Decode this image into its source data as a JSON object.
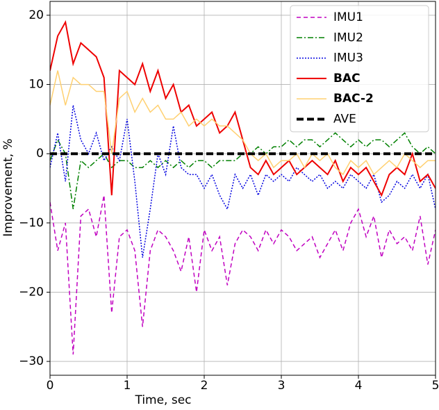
{
  "chart_data": {
    "type": "line",
    "xlabel": "Time, sec",
    "ylabel": "Improvement, %",
    "x": [
      0,
      0.1,
      0.2,
      0.3,
      0.4,
      0.5,
      0.6,
      0.7,
      0.8,
      0.9,
      1,
      1.1,
      1.2,
      1.3,
      1.4,
      1.5,
      1.6,
      1.7,
      1.8,
      1.9,
      2,
      2.1,
      2.2,
      2.3,
      2.4,
      2.5,
      2.6,
      2.7,
      2.8,
      2.9,
      3,
      3.1,
      3.2,
      3.3,
      3.4,
      3.5,
      3.6,
      3.7,
      3.8,
      3.9,
      4,
      4.1,
      4.2,
      4.3,
      4.4,
      4.5,
      4.6,
      4.7,
      4.8,
      4.9,
      5
    ],
    "series": [
      {
        "name": "IMU1",
        "color": "#c000c0",
        "dash": "6,4",
        "width": 1.5,
        "bold": false,
        "values": [
          -7,
          -14,
          -10,
          -29,
          -9,
          -8,
          -12,
          -6,
          -23,
          -12,
          -11,
          -14,
          -25,
          -14,
          -11,
          -12,
          -14,
          -17,
          -12,
          -20,
          -11,
          -14,
          -12,
          -19,
          -13,
          -11,
          -12,
          -14,
          -11,
          -13,
          -11,
          -12,
          -14,
          -13,
          -12,
          -15,
          -13,
          -11,
          -14,
          -10,
          -8,
          -12,
          -9,
          -15,
          -11,
          -13,
          -12,
          -14,
          -9,
          -16,
          -11
        ]
      },
      {
        "name": "IMU2",
        "color": "#008000",
        "dash": "8,3,2,3",
        "width": 1.5,
        "bold": false,
        "values": [
          -1,
          2,
          0,
          -8,
          -1,
          -2,
          -1,
          0,
          -2,
          -1,
          -1,
          -2,
          -2,
          -1,
          -2,
          -1,
          -2,
          -1,
          -2,
          -1,
          -1,
          -2,
          -1,
          -1,
          -1,
          0,
          0,
          1,
          0,
          1,
          1,
          2,
          1,
          2,
          2,
          1,
          2,
          3,
          2,
          1,
          2,
          1,
          2,
          2,
          1,
          2,
          3,
          1,
          0,
          1,
          0
        ]
      },
      {
        "name": "IMU3",
        "color": "#0000e0",
        "dash": "2,2",
        "width": 1.5,
        "bold": false,
        "values": [
          -2,
          3,
          -4,
          7,
          2,
          0,
          3,
          -1,
          1,
          -1,
          5,
          -4,
          -15,
          -8,
          0,
          -3,
          4,
          -2,
          -3,
          -3,
          -5,
          -3,
          -6,
          -8,
          -3,
          -5,
          -3,
          -6,
          -3,
          -4,
          -3,
          -4,
          -2,
          -3,
          -4,
          -3,
          -5,
          -4,
          -5,
          -3,
          -4,
          -5,
          -3,
          -7,
          -6,
          -4,
          -5,
          -3,
          -5,
          -3,
          -8
        ]
      },
      {
        "name": "BAC",
        "color": "#ee0000",
        "dash": "none",
        "width": 2,
        "bold": true,
        "values": [
          12,
          17,
          19,
          13,
          16,
          15,
          14,
          11,
          -6,
          12,
          11,
          10,
          13,
          9,
          12,
          8,
          10,
          6,
          7,
          4,
          5,
          6,
          3,
          4,
          6,
          2,
          -2,
          -3,
          -1,
          -3,
          -2,
          -1,
          -3,
          -2,
          -1,
          -2,
          -3,
          -1,
          -4,
          -2,
          -3,
          -2,
          -4,
          -6,
          -3,
          -2,
          -3,
          0,
          -4,
          -3,
          -5
        ]
      },
      {
        "name": "BAC-2",
        "color": "#ffd070",
        "dash": "none",
        "width": 1.5,
        "bold": true,
        "values": [
          7,
          12,
          7,
          11,
          10,
          10,
          9,
          9,
          0,
          8,
          9,
          6,
          8,
          6,
          7,
          5,
          5,
          6,
          4,
          5,
          4,
          5,
          4,
          4,
          3,
          2,
          0,
          -1,
          0,
          -2,
          -1,
          -1,
          0,
          -2,
          0,
          -1,
          0,
          -2,
          -3,
          -1,
          -2,
          -1,
          -3,
          -2,
          -1,
          -2,
          0,
          -1,
          -2,
          -1,
          -1
        ]
      },
      {
        "name": "AVE",
        "color": "#000000",
        "dash": "10,5",
        "width": 4,
        "bold": false,
        "x": [
          0,
          5
        ],
        "values": [
          0,
          0
        ]
      }
    ],
    "xlim": [
      0,
      5
    ],
    "xticks": [
      0,
      1,
      2,
      3,
      4,
      5
    ],
    "ylim": [
      -32,
      22
    ],
    "yticks": [
      {
        "value": -30,
        "label": "−30"
      },
      {
        "value": -20,
        "label": "−20"
      },
      {
        "value": -10,
        "label": "−10"
      },
      0,
      10,
      20
    ],
    "grid": true,
    "legend": "upper right"
  }
}
